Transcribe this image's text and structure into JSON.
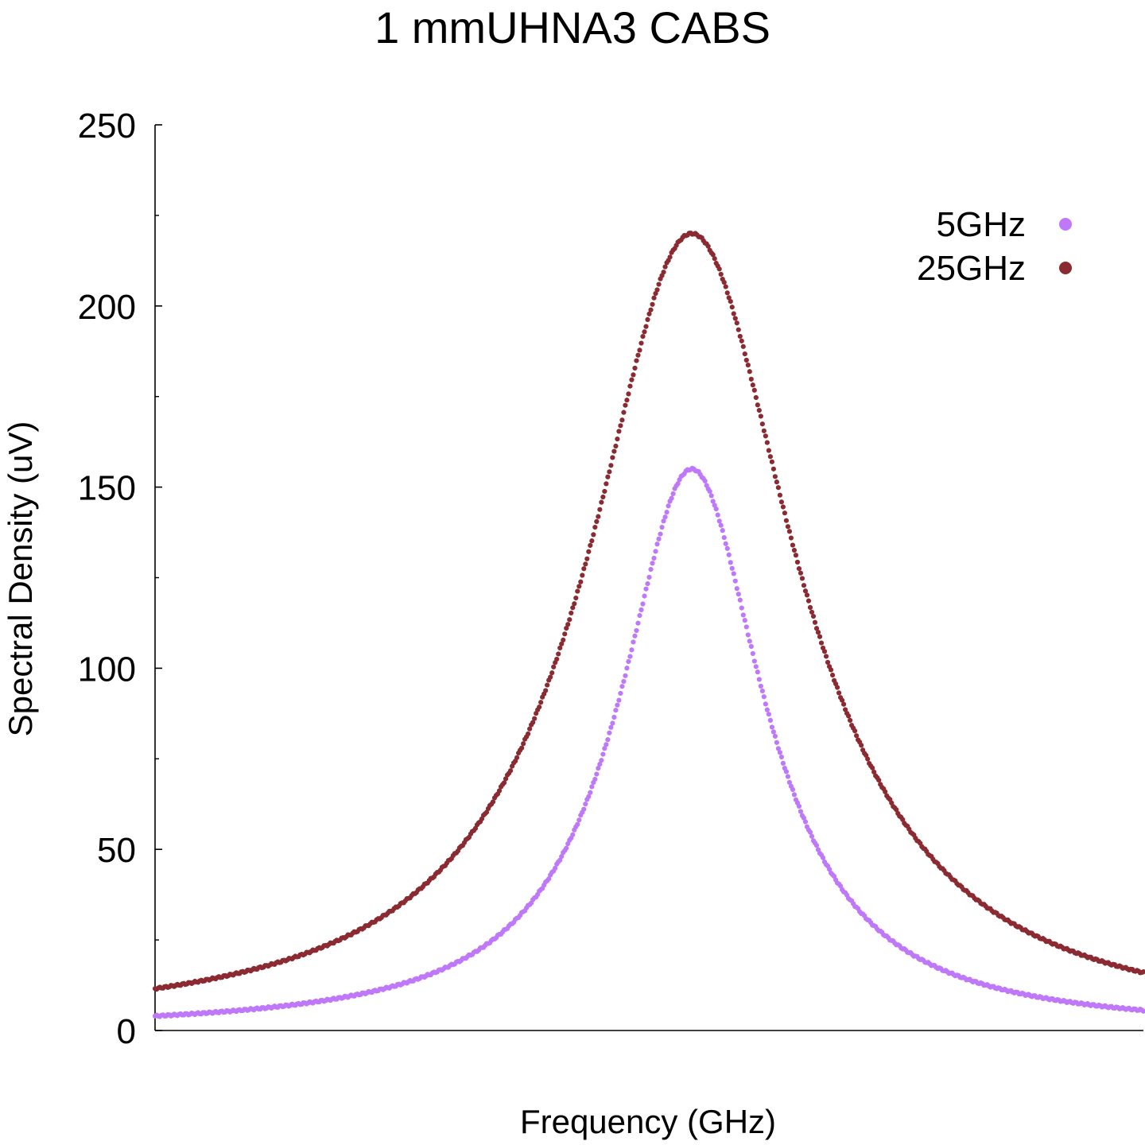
{
  "chart_data": {
    "type": "scatter",
    "title": "1 mmUHNA3 CABS",
    "xlabel": "Frequency (GHz)",
    "ylabel": "Spectral Density (uV)",
    "ylim": [
      0,
      250
    ],
    "yticks": [
      "0",
      "50",
      "100",
      "150",
      "200",
      "250"
    ],
    "xlim": [
      0,
      1
    ],
    "x_ticks_shown": false,
    "legend_position": "top-right",
    "series": [
      {
        "name": "5GHz",
        "color": "#bf78fa",
        "peak_x": 0.543,
        "peak_y": 155,
        "lorentz_gamma": 0.0883,
        "baseline": 0,
        "points": [
          [
            0.0,
            4.3
          ],
          [
            0.1,
            8.7
          ],
          [
            0.2,
            16.2
          ],
          [
            0.3,
            31.5
          ],
          [
            0.4,
            58.8
          ],
          [
            0.46,
            91.0
          ],
          [
            0.5,
            125.0
          ],
          [
            0.543,
            155.0
          ],
          [
            0.6,
            111.0
          ],
          [
            0.65,
            60.0
          ],
          [
            0.7,
            32.5
          ],
          [
            0.8,
            13.0
          ],
          [
            0.9,
            7.0
          ],
          [
            1.0,
            4.3
          ]
        ]
      },
      {
        "name": "25GHz",
        "color": "#8b2a31",
        "peak_x": 0.543,
        "peak_y": 220,
        "lorentz_gamma": 0.1278,
        "baseline": 0,
        "points": [
          [
            0.0,
            11.6
          ],
          [
            0.1,
            18.0
          ],
          [
            0.2,
            30.0
          ],
          [
            0.3,
            56.0
          ],
          [
            0.4,
            100.0
          ],
          [
            0.46,
            148.0
          ],
          [
            0.5,
            190.0
          ],
          [
            0.543,
            220.0
          ],
          [
            0.6,
            165.0
          ],
          [
            0.65,
            92.0
          ],
          [
            0.7,
            49.0
          ],
          [
            0.8,
            20.0
          ],
          [
            0.9,
            9.5
          ],
          [
            1.0,
            5.0
          ]
        ]
      }
    ]
  }
}
